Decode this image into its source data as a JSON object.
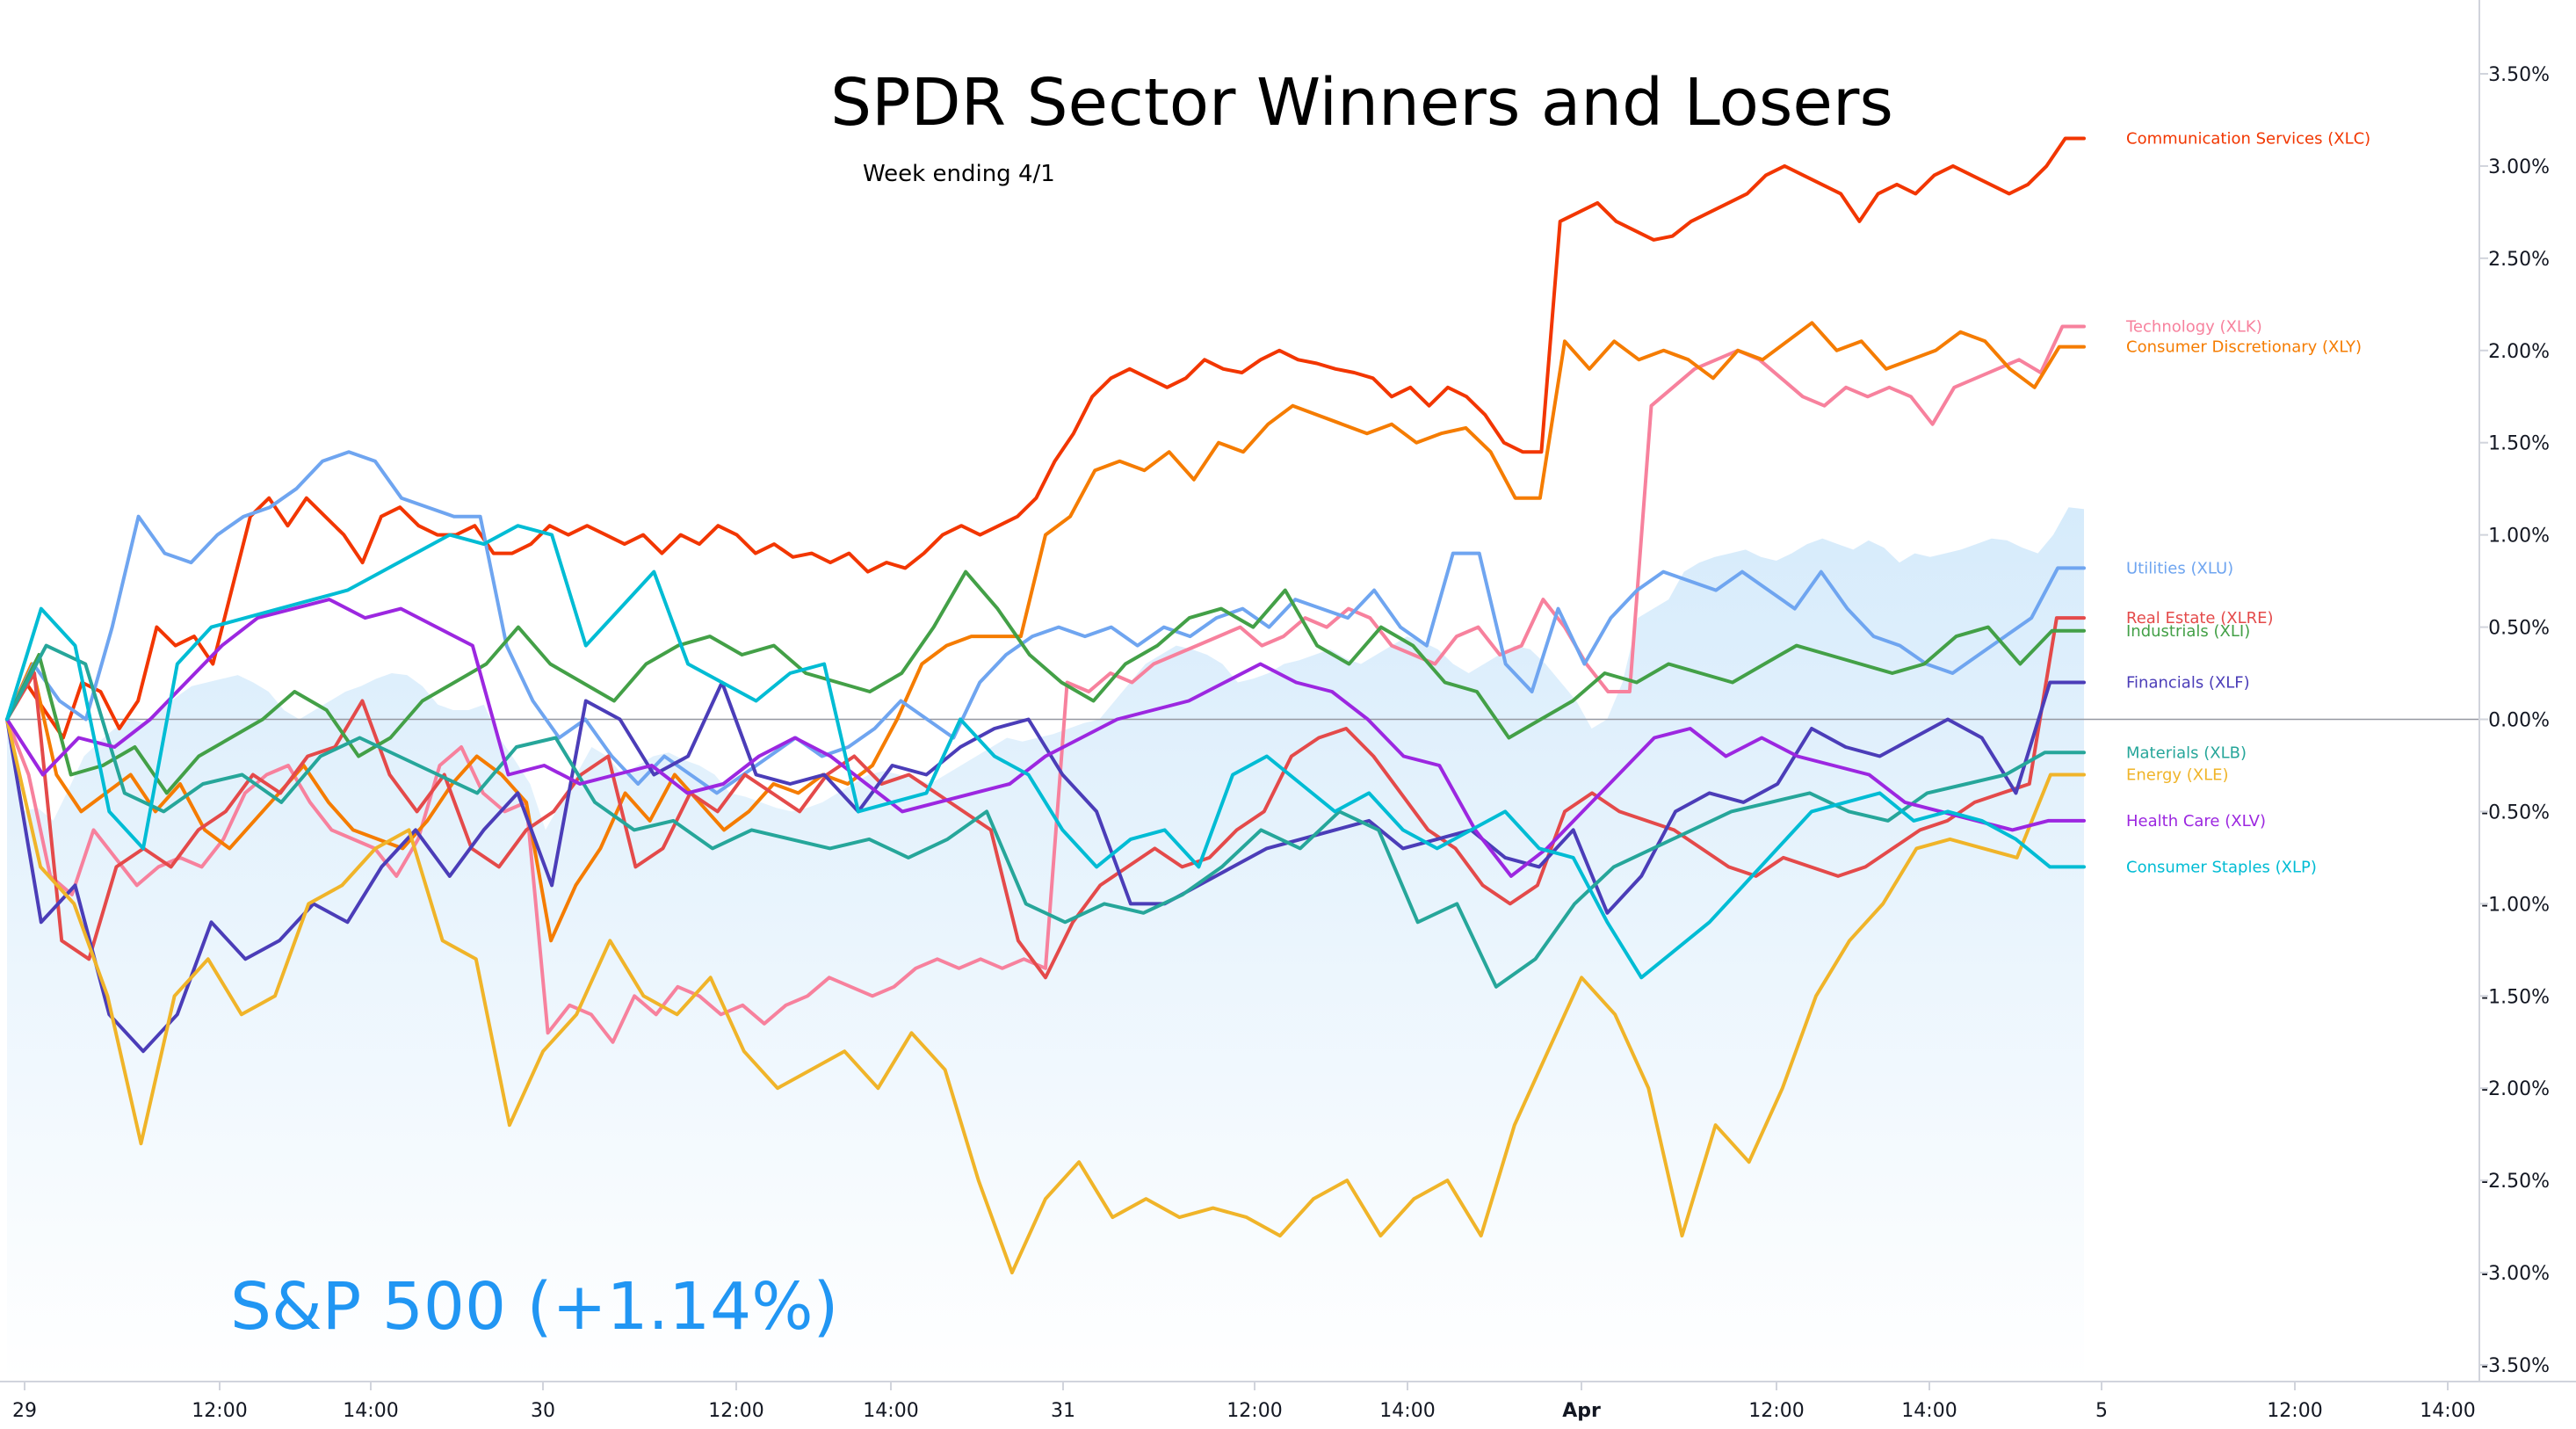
{
  "colors": {
    "background": "#ffffff",
    "axis_line": "#d1d4dc",
    "zero_line": "#9598a1",
    "tick_text": "#131722",
    "sp_area_top": "#d6ebfb",
    "sp_area_bottom": "#ffffff",
    "sp_label": "#2196f3"
  },
  "chart_data": {
    "type": "line",
    "title": "SPDR Sector Winners and Losers",
    "subtitle": "Week ending 4/1",
    "benchmark_label": "S&P 500 (+1.14%)",
    "x_axis": {
      "range": [
        "Mar 29 09:30",
        "Apr 5 14:30"
      ],
      "ticks": [
        "29",
        "12:00",
        "14:00",
        "30",
        "12:00",
        "14:00",
        "31",
        "12:00",
        "14:00",
        "Apr",
        "12:00",
        "14:00",
        "5",
        "12:00",
        "14:00"
      ],
      "sessions": [
        "Mar 29",
        "Mar 30",
        "Mar 31",
        "Apr 1"
      ],
      "session_hours": "09:30-16:00",
      "points_per_session": 36
    },
    "y_axis": {
      "unit": "%",
      "position": "right",
      "ylim": [
        -3.6,
        3.85
      ],
      "ticks": [
        "3.50%",
        "3.00%",
        "2.50%",
        "2.00%",
        "1.50%",
        "1.00%",
        "0.50%",
        "0.00%",
        "-0.50%",
        "-1.00%",
        "-1.50%",
        "-2.00%",
        "-2.50%",
        "-3.00%",
        "-3.50%"
      ],
      "zero_line": true
    },
    "grid": false,
    "legend": "right-edge labels",
    "benchmark": {
      "name": "S&P 500",
      "type": "area",
      "color": "#d6ebfb",
      "values": [
        0.0,
        -0.5,
        -0.48,
        -0.55,
        -0.38,
        -0.2,
        -0.12,
        -0.05,
        0.0,
        -0.02,
        0.05,
        0.12,
        0.18,
        0.2,
        0.22,
        0.24,
        0.2,
        0.15,
        0.05,
        0.0,
        0.05,
        0.1,
        0.15,
        0.18,
        0.22,
        0.25,
        0.24,
        0.18,
        0.08,
        0.05,
        0.05,
        0.08,
        -0.1,
        -0.22,
        -0.35,
        -0.6,
        -0.45,
        -0.3,
        -0.15,
        -0.2,
        -0.3,
        -0.25,
        -0.2,
        -0.18,
        -0.22,
        -0.25,
        -0.3,
        -0.4,
        -0.42,
        -0.45,
        -0.48,
        -0.5,
        -0.48,
        -0.45,
        -0.4,
        -0.35,
        -0.3,
        -0.28,
        -0.3,
        -0.32,
        -0.35,
        -0.3,
        -0.25,
        -0.2,
        -0.15,
        -0.1,
        -0.12,
        -0.1,
        -0.08,
        -0.05,
        -0.02,
        0.0,
        0.1,
        0.2,
        0.3,
        0.35,
        0.4,
        0.38,
        0.35,
        0.3,
        0.2,
        0.22,
        0.25,
        0.3,
        0.32,
        0.35,
        0.38,
        0.33,
        0.3,
        0.35,
        0.4,
        0.45,
        0.42,
        0.38,
        0.3,
        0.25,
        0.3,
        0.35,
        0.4,
        0.38,
        0.3,
        0.2,
        0.1,
        -0.05,
        0.0,
        0.2,
        0.55,
        0.6,
        0.65,
        0.8,
        0.85,
        0.88,
        0.9,
        0.92,
        0.88,
        0.86,
        0.9,
        0.95,
        0.98,
        0.95,
        0.92,
        0.97,
        0.93,
        0.85,
        0.9,
        0.88,
        0.9,
        0.92,
        0.95,
        0.98,
        0.97,
        0.93,
        0.9,
        1.0,
        1.15,
        1.14
      ]
    },
    "series": [
      {
        "name": "Communication Services (XLC)",
        "label_value": 3.15,
        "color": "#f23600",
        "values": [
          0.0,
          0.2,
          0.05,
          -0.1,
          0.2,
          0.15,
          -0.05,
          0.1,
          0.5,
          0.4,
          0.45,
          0.3,
          0.7,
          1.1,
          1.2,
          1.05,
          1.2,
          1.1,
          1.0,
          0.85,
          1.1,
          1.15,
          1.05,
          1.0,
          1.0,
          1.05,
          0.9,
          0.9,
          0.95,
          1.05,
          1.0,
          1.05,
          1.0,
          0.95,
          1.0,
          0.9,
          1.0,
          0.95,
          1.05,
          1.0,
          0.9,
          0.95,
          0.88,
          0.9,
          0.85,
          0.9,
          0.8,
          0.85,
          0.82,
          0.9,
          1.0,
          1.05,
          1.0,
          1.05,
          1.1,
          1.2,
          1.4,
          1.55,
          1.75,
          1.85,
          1.9,
          1.85,
          1.8,
          1.85,
          1.95,
          1.9,
          1.88,
          1.95,
          2.0,
          1.95,
          1.93,
          1.9,
          1.88,
          1.85,
          1.75,
          1.8,
          1.7,
          1.8,
          1.75,
          1.65,
          1.5,
          1.45,
          1.45,
          2.7,
          2.75,
          2.8,
          2.7,
          2.65,
          2.6,
          2.62,
          2.7,
          2.75,
          2.8,
          2.85,
          2.95,
          3.0,
          2.95,
          2.9,
          2.85,
          2.7,
          2.85,
          2.9,
          2.85,
          2.95,
          3.0,
          2.95,
          2.9,
          2.85,
          2.9,
          3.0,
          3.15,
          3.15
        ]
      },
      {
        "name": "Technology (XLK)",
        "label_value": 2.13,
        "color": "#f7819d",
        "values": [
          0.0,
          -0.3,
          -0.85,
          -0.95,
          -0.6,
          -0.75,
          -0.9,
          -0.8,
          -0.75,
          -0.8,
          -0.65,
          -0.4,
          -0.3,
          -0.25,
          -0.45,
          -0.6,
          -0.65,
          -0.7,
          -0.85,
          -0.65,
          -0.25,
          -0.15,
          -0.4,
          -0.5,
          -0.45,
          -1.7,
          -1.55,
          -1.6,
          -1.75,
          -1.5,
          -1.6,
          -1.45,
          -1.5,
          -1.6,
          -1.55,
          -1.65,
          -1.55,
          -1.5,
          -1.4,
          -1.45,
          -1.5,
          -1.45,
          -1.35,
          -1.3,
          -1.35,
          -1.3,
          -1.35,
          -1.3,
          -1.35,
          0.2,
          0.15,
          0.25,
          0.2,
          0.3,
          0.35,
          0.4,
          0.45,
          0.5,
          0.4,
          0.45,
          0.55,
          0.5,
          0.6,
          0.55,
          0.4,
          0.35,
          0.3,
          0.45,
          0.5,
          0.35,
          0.4,
          0.65,
          0.5,
          0.3,
          0.15,
          0.15,
          1.7,
          1.8,
          1.9,
          1.95,
          2.0,
          1.95,
          1.85,
          1.75,
          1.7,
          1.8,
          1.75,
          1.8,
          1.75,
          1.6,
          1.8,
          1.85,
          1.9,
          1.95,
          1.88,
          2.13,
          2.13
        ]
      },
      {
        "name": "Consumer Discretionary (XLY)",
        "label_value": 2.02,
        "color": "#f57c00",
        "values": [
          0.0,
          0.3,
          -0.3,
          -0.5,
          -0.4,
          -0.3,
          -0.5,
          -0.35,
          -0.6,
          -0.7,
          -0.55,
          -0.4,
          -0.25,
          -0.45,
          -0.6,
          -0.65,
          -0.7,
          -0.55,
          -0.35,
          -0.2,
          -0.3,
          -0.45,
          -1.2,
          -0.9,
          -0.7,
          -0.4,
          -0.55,
          -0.3,
          -0.45,
          -0.6,
          -0.5,
          -0.35,
          -0.4,
          -0.3,
          -0.35,
          -0.25,
          0.0,
          0.3,
          0.4,
          0.45,
          0.45,
          0.45,
          1.0,
          1.1,
          1.35,
          1.4,
          1.35,
          1.45,
          1.3,
          1.5,
          1.45,
          1.6,
          1.7,
          1.65,
          1.6,
          1.55,
          1.6,
          1.5,
          1.55,
          1.58,
          1.45,
          1.2,
          1.2,
          2.05,
          1.9,
          2.05,
          1.95,
          2.0,
          1.95,
          1.85,
          2.0,
          1.95,
          2.05,
          2.15,
          2.0,
          2.05,
          1.9,
          1.95,
          2.0,
          2.1,
          2.05,
          1.9,
          1.8,
          2.02,
          2.02
        ]
      },
      {
        "name": "Utilities (XLU)",
        "label_value": 0.82,
        "color": "#6fa5f0",
        "values": [
          0.0,
          0.3,
          0.1,
          0.0,
          0.5,
          1.1,
          0.9,
          0.85,
          1.0,
          1.1,
          1.15,
          1.25,
          1.4,
          1.45,
          1.4,
          1.2,
          1.15,
          1.1,
          1.1,
          0.4,
          0.1,
          -0.1,
          0.0,
          -0.2,
          -0.35,
          -0.2,
          -0.3,
          -0.4,
          -0.3,
          -0.2,
          -0.1,
          -0.2,
          -0.15,
          -0.05,
          0.1,
          0.0,
          -0.1,
          0.2,
          0.35,
          0.45,
          0.5,
          0.45,
          0.5,
          0.4,
          0.5,
          0.45,
          0.55,
          0.6,
          0.5,
          0.65,
          0.6,
          0.55,
          0.7,
          0.5,
          0.4,
          0.9,
          0.9,
          0.3,
          0.15,
          0.6,
          0.3,
          0.55,
          0.7,
          0.8,
          0.75,
          0.7,
          0.8,
          0.7,
          0.6,
          0.8,
          0.6,
          0.45,
          0.4,
          0.3,
          0.25,
          0.35,
          0.45,
          0.55,
          0.82,
          0.82
        ]
      },
      {
        "name": "Real Estate (XLRE)",
        "label_value": 0.55,
        "color": "#e44a4a",
        "values": [
          0.0,
          0.25,
          -1.2,
          -1.3,
          -0.8,
          -0.7,
          -0.8,
          -0.6,
          -0.5,
          -0.3,
          -0.4,
          -0.2,
          -0.15,
          0.1,
          -0.3,
          -0.5,
          -0.3,
          -0.7,
          -0.8,
          -0.6,
          -0.5,
          -0.3,
          -0.2,
          -0.8,
          -0.7,
          -0.4,
          -0.5,
          -0.3,
          -0.4,
          -0.5,
          -0.3,
          -0.2,
          -0.35,
          -0.3,
          -0.4,
          -0.5,
          -0.6,
          -1.2,
          -1.4,
          -1.1,
          -0.9,
          -0.8,
          -0.7,
          -0.8,
          -0.75,
          -0.6,
          -0.5,
          -0.2,
          -0.1,
          -0.05,
          -0.2,
          -0.4,
          -0.6,
          -0.7,
          -0.9,
          -1.0,
          -0.9,
          -0.5,
          -0.4,
          -0.5,
          -0.55,
          -0.6,
          -0.7,
          -0.8,
          -0.85,
          -0.75,
          -0.8,
          -0.85,
          -0.8,
          -0.7,
          -0.6,
          -0.55,
          -0.45,
          -0.4,
          -0.35,
          0.55,
          0.55
        ]
      },
      {
        "name": "Industrials (XLI)",
        "label_value": 0.48,
        "color": "#43a047",
        "values": [
          0.0,
          0.35,
          -0.3,
          -0.25,
          -0.15,
          -0.4,
          -0.2,
          -0.1,
          0.0,
          0.15,
          0.05,
          -0.2,
          -0.1,
          0.1,
          0.2,
          0.3,
          0.5,
          0.3,
          0.2,
          0.1,
          0.3,
          0.4,
          0.45,
          0.35,
          0.4,
          0.25,
          0.2,
          0.15,
          0.25,
          0.5,
          0.8,
          0.6,
          0.35,
          0.2,
          0.1,
          0.3,
          0.4,
          0.55,
          0.6,
          0.5,
          0.7,
          0.4,
          0.3,
          0.5,
          0.4,
          0.2,
          0.15,
          -0.1,
          0.0,
          0.1,
          0.25,
          0.2,
          0.3,
          0.25,
          0.2,
          0.3,
          0.4,
          0.35,
          0.3,
          0.25,
          0.3,
          0.45,
          0.5,
          0.3,
          0.48,
          0.48
        ]
      },
      {
        "name": "Financials (XLF)",
        "label_value": 0.2,
        "color": "#4b3db8",
        "values": [
          0.0,
          -1.1,
          -0.9,
          -1.6,
          -1.8,
          -1.6,
          -1.1,
          -1.3,
          -1.2,
          -1.0,
          -1.1,
          -0.8,
          -0.6,
          -0.85,
          -0.6,
          -0.4,
          -0.9,
          0.1,
          0.0,
          -0.3,
          -0.2,
          0.2,
          -0.3,
          -0.35,
          -0.3,
          -0.5,
          -0.25,
          -0.3,
          -0.15,
          -0.05,
          0.0,
          -0.3,
          -0.5,
          -1.0,
          -1.0,
          -0.9,
          -0.8,
          -0.7,
          -0.65,
          -0.6,
          -0.55,
          -0.7,
          -0.65,
          -0.6,
          -0.75,
          -0.8,
          -0.6,
          -1.05,
          -0.85,
          -0.5,
          -0.4,
          -0.45,
          -0.35,
          -0.05,
          -0.15,
          -0.2,
          -0.1,
          0.0,
          -0.1,
          -0.4,
          0.2,
          0.2
        ]
      },
      {
        "name": "Materials (XLB)",
        "label_value": -0.18,
        "color": "#26a69a",
        "values": [
          0.0,
          0.4,
          0.3,
          -0.4,
          -0.5,
          -0.35,
          -0.3,
          -0.45,
          -0.2,
          -0.1,
          -0.2,
          -0.3,
          -0.4,
          -0.15,
          -0.1,
          -0.45,
          -0.6,
          -0.55,
          -0.7,
          -0.6,
          -0.65,
          -0.7,
          -0.65,
          -0.75,
          -0.65,
          -0.5,
          -1.0,
          -1.1,
          -1.0,
          -1.05,
          -0.95,
          -0.8,
          -0.6,
          -0.7,
          -0.5,
          -0.6,
          -1.1,
          -1.0,
          -1.45,
          -1.3,
          -1.0,
          -0.8,
          -0.7,
          -0.6,
          -0.5,
          -0.45,
          -0.4,
          -0.5,
          -0.55,
          -0.4,
          -0.35,
          -0.3,
          -0.18,
          -0.18
        ]
      },
      {
        "name": "Energy (XLE)",
        "label_value": -0.3,
        "color": "#f0b429",
        "values": [
          0.0,
          -0.8,
          -1.0,
          -1.5,
          -2.3,
          -1.5,
          -1.3,
          -1.6,
          -1.5,
          -1.0,
          -0.9,
          -0.7,
          -0.6,
          -1.2,
          -1.3,
          -2.2,
          -1.8,
          -1.6,
          -1.2,
          -1.5,
          -1.6,
          -1.4,
          -1.8,
          -2.0,
          -1.9,
          -1.8,
          -2.0,
          -1.7,
          -1.9,
          -2.5,
          -3.0,
          -2.6,
          -2.4,
          -2.7,
          -2.6,
          -2.7,
          -2.65,
          -2.7,
          -2.8,
          -2.6,
          -2.5,
          -2.8,
          -2.6,
          -2.5,
          -2.8,
          -2.2,
          -1.8,
          -1.4,
          -1.6,
          -2.0,
          -2.8,
          -2.2,
          -2.4,
          -2.0,
          -1.5,
          -1.2,
          -1.0,
          -0.7,
          -0.65,
          -0.7,
          -0.75,
          -0.3,
          -0.3
        ]
      },
      {
        "name": "Health Care (XLV)",
        "label_value": -0.55,
        "color": "#9c27e0",
        "values": [
          0.0,
          -0.3,
          -0.1,
          -0.15,
          0.0,
          0.2,
          0.4,
          0.55,
          0.6,
          0.65,
          0.55,
          0.6,
          0.5,
          0.4,
          -0.3,
          -0.25,
          -0.35,
          -0.3,
          -0.25,
          -0.4,
          -0.35,
          -0.2,
          -0.1,
          -0.2,
          -0.35,
          -0.5,
          -0.45,
          -0.4,
          -0.35,
          -0.2,
          -0.1,
          0.0,
          0.05,
          0.1,
          0.2,
          0.3,
          0.2,
          0.15,
          0.0,
          -0.2,
          -0.25,
          -0.6,
          -0.85,
          -0.7,
          -0.5,
          -0.3,
          -0.1,
          -0.05,
          -0.2,
          -0.1,
          -0.2,
          -0.25,
          -0.3,
          -0.45,
          -0.5,
          -0.55,
          -0.6,
          -0.55,
          -0.55
        ]
      },
      {
        "name": "Consumer Staples (XLP)",
        "label_value": -0.8,
        "color": "#00bcd4",
        "values": [
          0.0,
          0.6,
          0.4,
          -0.5,
          -0.7,
          0.3,
          0.5,
          0.55,
          0.6,
          0.65,
          0.7,
          0.8,
          0.9,
          1.0,
          0.95,
          1.05,
          1.0,
          0.4,
          0.6,
          0.8,
          0.3,
          0.2,
          0.1,
          0.25,
          0.3,
          -0.5,
          -0.45,
          -0.4,
          0.0,
          -0.2,
          -0.3,
          -0.6,
          -0.8,
          -0.65,
          -0.6,
          -0.8,
          -0.3,
          -0.2,
          -0.35,
          -0.5,
          -0.4,
          -0.6,
          -0.7,
          -0.6,
          -0.5,
          -0.7,
          -0.75,
          -1.1,
          -1.4,
          -1.25,
          -1.1,
          -0.9,
          -0.7,
          -0.5,
          -0.45,
          -0.4,
          -0.55,
          -0.5,
          -0.55,
          -0.65,
          -0.8,
          -0.8
        ]
      }
    ]
  }
}
